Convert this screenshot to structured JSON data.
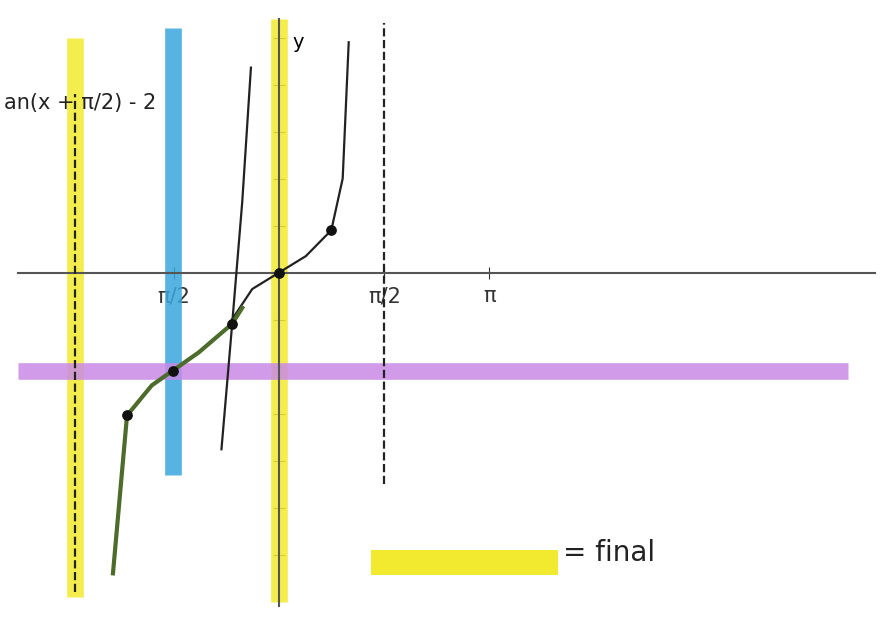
{
  "chart_data": {
    "type": "line",
    "annotations": [
      "an(x + π/2) - 2",
      "= final"
    ],
    "ylabel": "y",
    "xlim": [
      -3.9,
      8.9
    ],
    "ylim": [
      -7.1,
      5.4
    ],
    "xticks": [
      {
        "value": -1.57,
        "label": "π/2"
      },
      {
        "value": 1.57,
        "label": "π/2"
      },
      {
        "value": 3.14,
        "label": "π"
      }
    ],
    "yticks": [
      -6,
      -5,
      -4,
      -3,
      -2,
      -1,
      0,
      1,
      2,
      3,
      4,
      5
    ],
    "tick_labels": "x",
    "grid": false,
    "series": [
      {
        "type": "line",
        "color": "#f2ea2e",
        "line_style": "highlight",
        "x": [
          -3.04,
          -3.04
        ],
        "values": [
          -6.9,
          5.0
        ]
      },
      {
        "type": "line",
        "color": "#f2ea2e",
        "line_style": "highlight",
        "x": [
          0,
          0
        ],
        "values": [
          -7.0,
          5.4
        ]
      },
      {
        "type": "line",
        "color": "#3aa6dd",
        "line_style": "highlight",
        "x": [
          -1.59,
          -1.59
        ],
        "values": [
          -4.3,
          5.2
        ]
      },
      {
        "type": "line",
        "color": "#c98ae6",
        "line_style": "highlight",
        "x": [
          -3.9,
          8.5
        ],
        "values": [
          -2.09,
          -2.09
        ]
      },
      {
        "type": "line",
        "color": "#222222",
        "line_style": "dashed",
        "x": [
          1.57,
          1.57
        ],
        "values": [
          -4.5,
          5.3
        ]
      },
      {
        "type": "line",
        "color": "#222222",
        "line_style": "dashed",
        "x": [
          -3.04,
          -3.04
        ],
        "values": [
          -6.8,
          3.8
        ]
      },
      {
        "type": "line",
        "color": "#222222",
        "line_style": "solid",
        "x": [
          -0.75,
          -0.4,
          0,
          0.4,
          0.78,
          0.95,
          1.04
        ],
        "values": [
          -1.1,
          -0.35,
          0,
          0.35,
          0.9,
          2.0,
          4.9
        ]
      },
      {
        "type": "line",
        "color": "#222222",
        "line_style": "solid",
        "x": [
          -0.86,
          -0.7,
          -0.55,
          -0.42
        ],
        "values": [
          -3.76,
          -1.09,
          1.5,
          4.36
        ]
      },
      {
        "type": "line",
        "color": "#4d6b2a",
        "line_style": "solid",
        "x": [
          -2.48,
          -2.27,
          -1.9,
          -1.59,
          -1.2,
          -0.7,
          -0.55
        ],
        "values": [
          -6.4,
          -3.04,
          -2.4,
          -2.09,
          -1.7,
          -1.09,
          -0.75
        ]
      },
      {
        "type": "scatter",
        "color": "#111111",
        "marker": "o",
        "x": [
          -2.27,
          -1.59,
          -0.7,
          0,
          0.78
        ],
        "values": [
          -3.04,
          -2.09,
          -1.09,
          0,
          0.9
        ]
      }
    ]
  }
}
